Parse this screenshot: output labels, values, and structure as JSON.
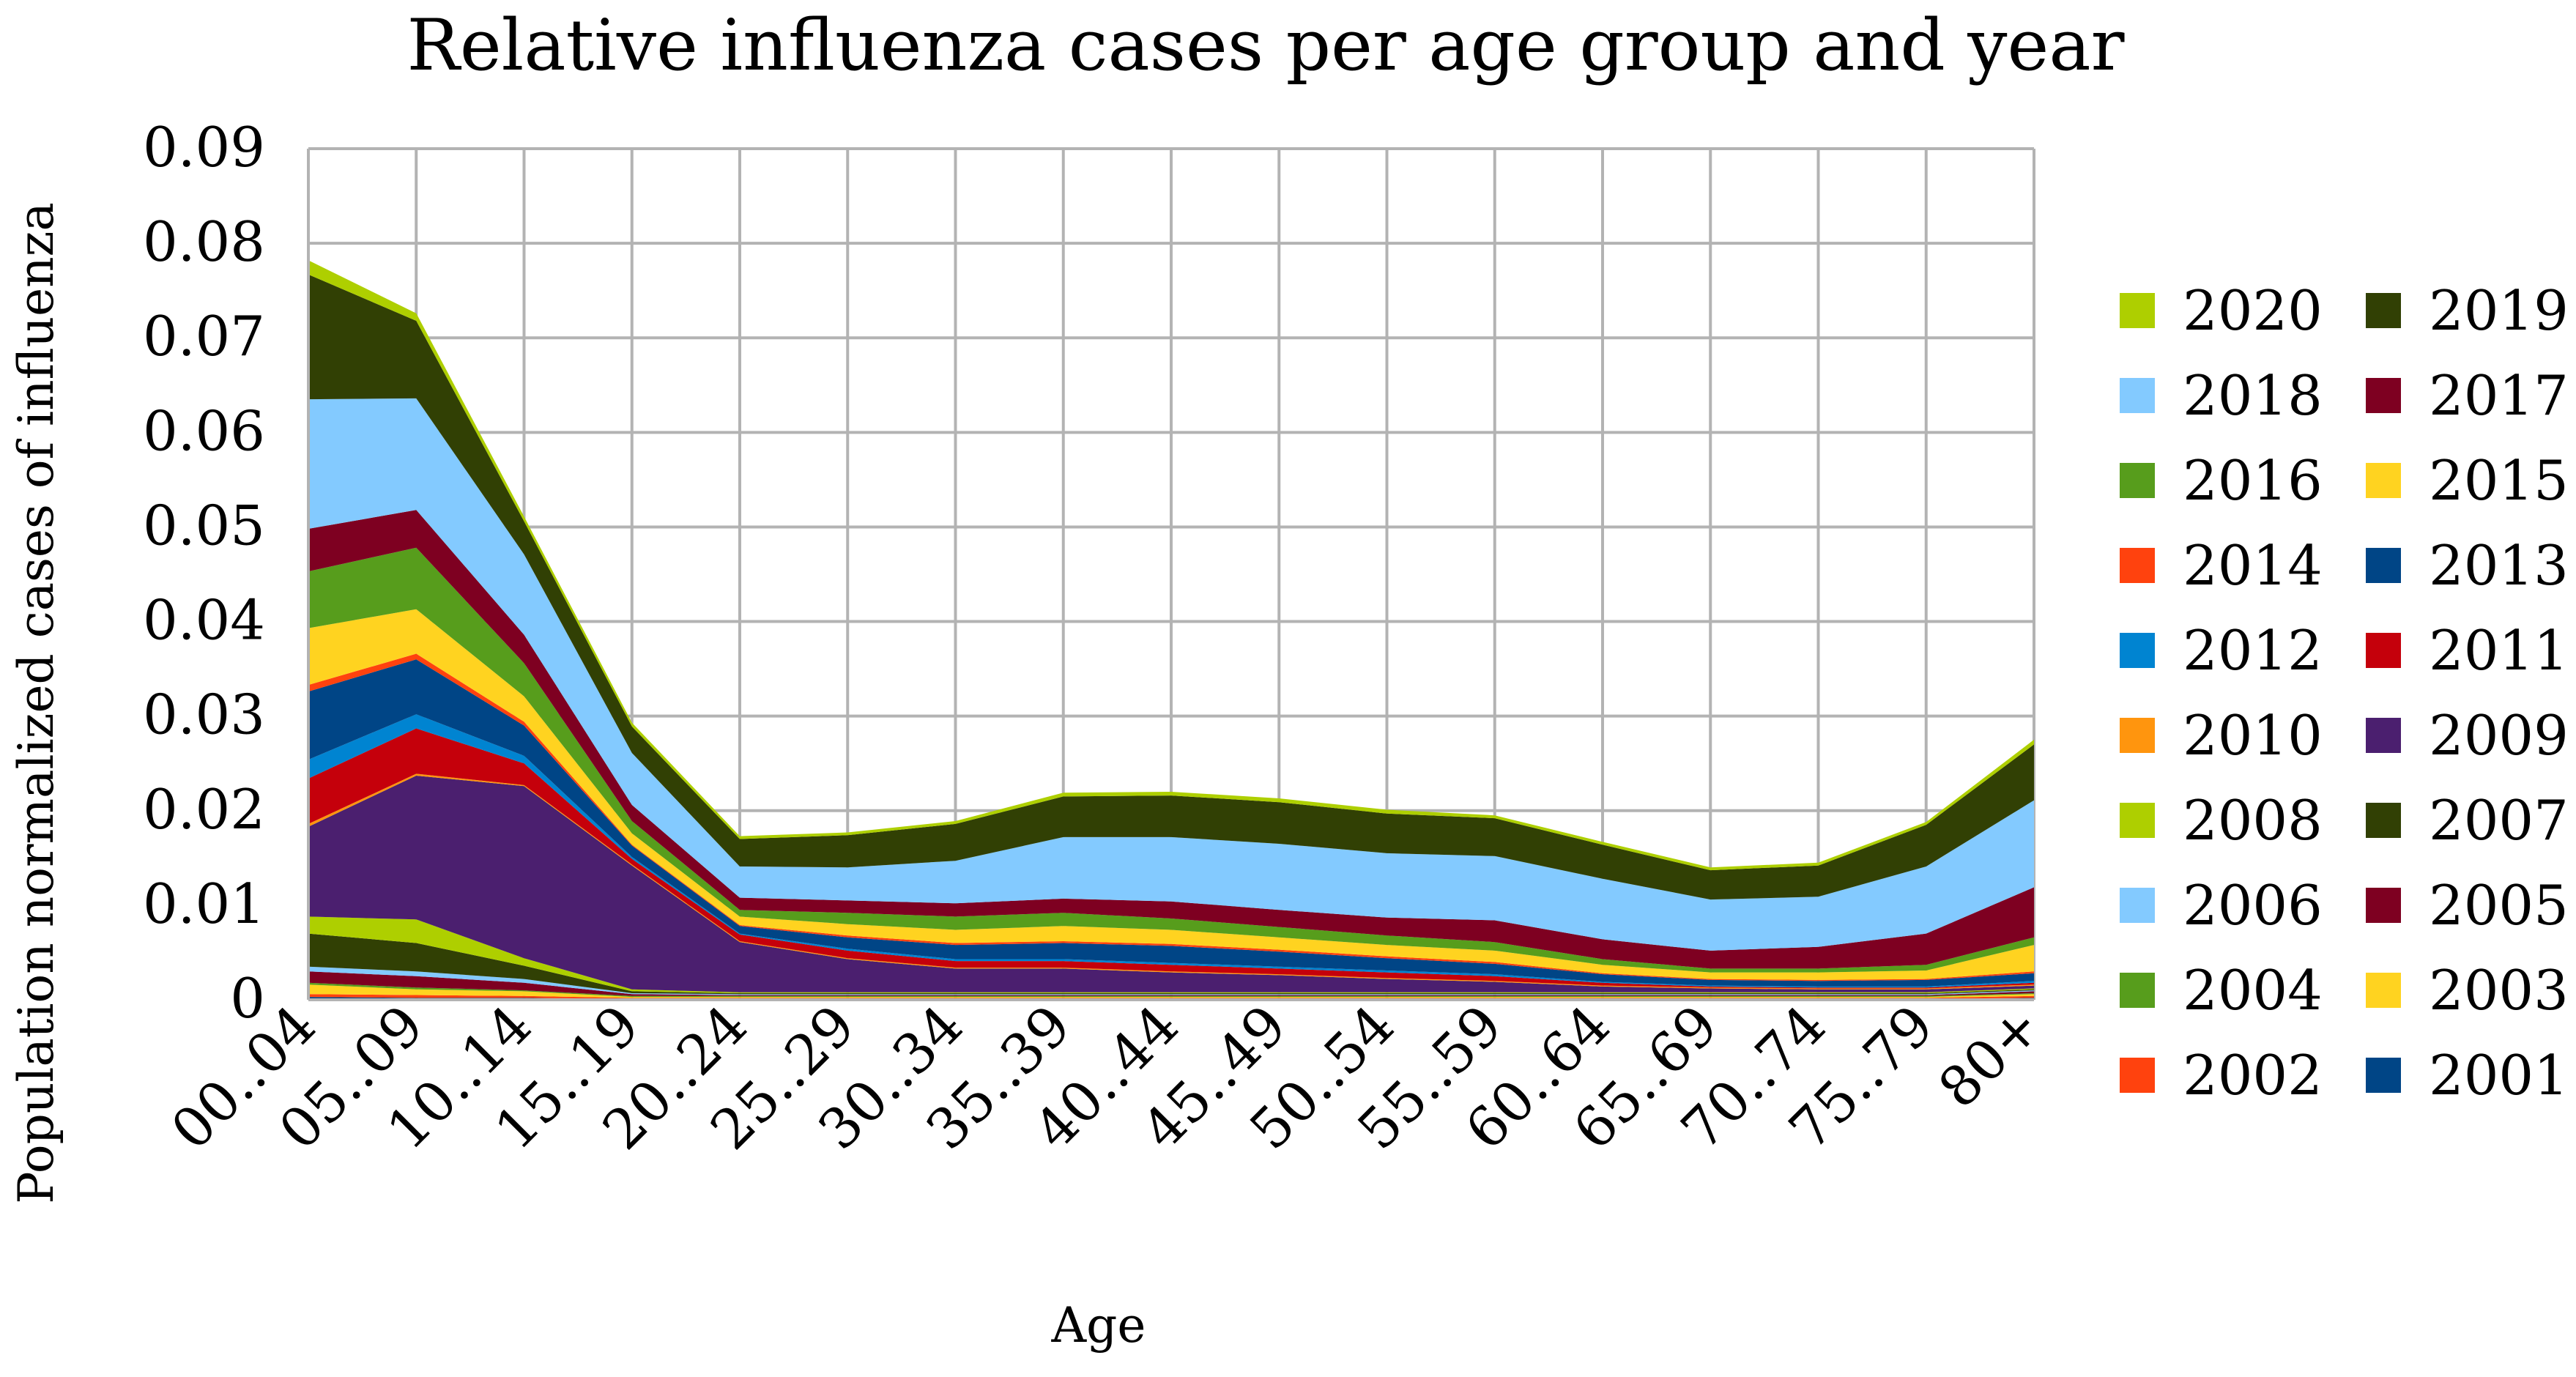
{
  "chart_data": {
    "type": "area",
    "stacked": true,
    "title": "Relative influenza cases per age group and year",
    "xlabel": "Age",
    "ylabel": "Population normalized cases of influenza",
    "ylim": [
      0,
      0.09
    ],
    "yticks": [
      0,
      0.01,
      0.02,
      0.03,
      0.04,
      0.05,
      0.06,
      0.07,
      0.08,
      0.09
    ],
    "ytick_labels": [
      "0",
      "0.01",
      "0.02",
      "0.03",
      "0.04",
      "0.05",
      "0.06",
      "0.07",
      "0.08",
      "0.09"
    ],
    "grid": true,
    "legend_position": "right",
    "categories": [
      "00..04",
      "05..09",
      "10..14",
      "15..19",
      "20..24",
      "25..29",
      "30..34",
      "35..39",
      "40..44",
      "45..49",
      "50..54",
      "55..59",
      "60..64",
      "65..69",
      "70..74",
      "75..79",
      "80+"
    ],
    "series": [
      {
        "name": "2001",
        "color": "#004586",
        "values": [
          0.0003,
          0.0002,
          0.0002,
          0.0001,
          0.0001,
          0.0001,
          0.0001,
          0.0001,
          0.0001,
          0.0001,
          0.0001,
          0.0001,
          0.0001,
          0.0001,
          0.0001,
          0.0001,
          0.0002
        ]
      },
      {
        "name": "2002",
        "color": "#ff420e",
        "values": [
          0.0003,
          0.0003,
          0.0002,
          0.0001,
          0.0001,
          0.0001,
          0.0001,
          0.0001,
          0.0001,
          0.0001,
          0.0001,
          0.0001,
          0.0001,
          0.0001,
          0.0001,
          0.0001,
          0.0002
        ]
      },
      {
        "name": "2003",
        "color": "#ffd320",
        "values": [
          0.001,
          0.0006,
          0.0005,
          0.0001,
          0.0001,
          0.0001,
          0.0001,
          0.0001,
          0.0001,
          0.0001,
          0.0001,
          0.0001,
          0.0001,
          0.0001,
          0.0001,
          0.0001,
          0.0002
        ]
      },
      {
        "name": "2004",
        "color": "#579d1c",
        "values": [
          0.0002,
          0.0002,
          0.0001,
          0.0001,
          0.0001,
          0.0001,
          0.0001,
          0.0001,
          0.0001,
          0.0001,
          0.0001,
          0.0001,
          0.0001,
          0.0001,
          0.0001,
          0.0001,
          0.0001
        ]
      },
      {
        "name": "2005",
        "color": "#7e0021",
        "values": [
          0.0012,
          0.0012,
          0.0008,
          0.0002,
          0.0001,
          0.0001,
          0.0001,
          0.0001,
          0.0001,
          0.0001,
          0.0001,
          0.0001,
          0.0001,
          0.0001,
          0.0001,
          0.0001,
          0.0002
        ]
      },
      {
        "name": "2006",
        "color": "#83caff",
        "values": [
          0.0005,
          0.0005,
          0.0004,
          0.0001,
          0.0001,
          0.0001,
          0.0001,
          0.0001,
          0.0001,
          0.0001,
          0.0001,
          0.0001,
          0.0001,
          0.0001,
          0.0001,
          0.0001,
          0.0001
        ]
      },
      {
        "name": "2007",
        "color": "#314004",
        "values": [
          0.0035,
          0.003,
          0.0014,
          0.0002,
          0.0001,
          0.0001,
          0.0001,
          0.0001,
          0.0001,
          0.0001,
          0.0001,
          0.0001,
          0.0001,
          0.0001,
          0.0001,
          0.0001,
          0.0001
        ]
      },
      {
        "name": "2008",
        "color": "#aecf00",
        "values": [
          0.0018,
          0.0025,
          0.0008,
          0.0002,
          0.0001,
          0.0001,
          0.0001,
          0.0001,
          0.0001,
          0.0001,
          0.0001,
          0.0001,
          0.0001,
          0.0001,
          0.0001,
          0.0001,
          0.0001
        ]
      },
      {
        "name": "2009",
        "color": "#4b1f6f",
        "values": [
          0.0095,
          0.0152,
          0.0182,
          0.0131,
          0.0053,
          0.0035,
          0.0025,
          0.0025,
          0.0021,
          0.0018,
          0.0014,
          0.0011,
          0.0006,
          0.0004,
          0.0003,
          0.0003,
          0.0003
        ]
      },
      {
        "name": "2010",
        "color": "#ff950e",
        "values": [
          0.0003,
          0.0002,
          0.0001,
          0.0001,
          0.0001,
          0.0001,
          0.0001,
          0.0001,
          0.0001,
          0.0001,
          0.0001,
          0.0001,
          0.0001,
          0.0001,
          0.0001,
          0.0001,
          0.0001
        ]
      },
      {
        "name": "2011",
        "color": "#c5000b",
        "values": [
          0.0048,
          0.0048,
          0.0023,
          0.0006,
          0.0007,
          0.0008,
          0.0007,
          0.0007,
          0.0007,
          0.0006,
          0.0006,
          0.0005,
          0.0003,
          0.0001,
          0.0001,
          0.0001,
          0.0002
        ]
      },
      {
        "name": "2012",
        "color": "#0084d1",
        "values": [
          0.002,
          0.0015,
          0.0008,
          0.0002,
          0.0001,
          0.0002,
          0.0002,
          0.0002,
          0.0002,
          0.0002,
          0.0002,
          0.0002,
          0.0001,
          0.0001,
          0.0001,
          0.0001,
          0.0002
        ]
      },
      {
        "name": "2013",
        "color": "#004586",
        "values": [
          0.0072,
          0.0058,
          0.0032,
          0.0012,
          0.0008,
          0.0012,
          0.0015,
          0.0017,
          0.0018,
          0.0016,
          0.0013,
          0.0011,
          0.0008,
          0.0006,
          0.0006,
          0.0007,
          0.0008
        ]
      },
      {
        "name": "2014",
        "color": "#ff420e",
        "values": [
          0.0007,
          0.0006,
          0.0004,
          0.0001,
          0.0001,
          0.0002,
          0.0002,
          0.0002,
          0.0002,
          0.0002,
          0.0002,
          0.0002,
          0.0001,
          0.0001,
          0.0001,
          0.0001,
          0.0002
        ]
      },
      {
        "name": "2015",
        "color": "#ffd320",
        "values": [
          0.006,
          0.0047,
          0.0027,
          0.0012,
          0.0009,
          0.0012,
          0.0014,
          0.0016,
          0.0015,
          0.0013,
          0.0012,
          0.0012,
          0.0009,
          0.0007,
          0.0008,
          0.0009,
          0.0028
        ]
      },
      {
        "name": "2016",
        "color": "#579d1c",
        "values": [
          0.006,
          0.0065,
          0.0035,
          0.0013,
          0.0007,
          0.0012,
          0.0014,
          0.0014,
          0.0012,
          0.0011,
          0.001,
          0.0009,
          0.0006,
          0.0004,
          0.0004,
          0.0006,
          0.0008
        ]
      },
      {
        "name": "2017",
        "color": "#7e0021",
        "values": [
          0.0045,
          0.004,
          0.003,
          0.0017,
          0.0013,
          0.0013,
          0.0014,
          0.0015,
          0.0018,
          0.0018,
          0.0019,
          0.0023,
          0.0021,
          0.0019,
          0.0023,
          0.0033,
          0.0053
        ]
      },
      {
        "name": "2018",
        "color": "#83caff",
        "values": [
          0.0137,
          0.0118,
          0.0085,
          0.0055,
          0.0033,
          0.0035,
          0.0045,
          0.0065,
          0.0068,
          0.007,
          0.0068,
          0.0068,
          0.0064,
          0.0054,
          0.0053,
          0.0071,
          0.0092
        ]
      },
      {
        "name": "2019",
        "color": "#314004",
        "values": [
          0.0132,
          0.0082,
          0.0035,
          0.0028,
          0.0029,
          0.0034,
          0.0039,
          0.0043,
          0.0044,
          0.0044,
          0.0042,
          0.004,
          0.0036,
          0.0031,
          0.0033,
          0.0044,
          0.0059
        ]
      },
      {
        "name": "2020",
        "color": "#aecf00",
        "values": [
          0.0015,
          0.0008,
          0.0005,
          0.0004,
          0.0003,
          0.0003,
          0.0003,
          0.0004,
          0.0004,
          0.0004,
          0.0004,
          0.0003,
          0.0003,
          0.0003,
          0.0003,
          0.0003,
          0.0005
        ]
      }
    ]
  }
}
